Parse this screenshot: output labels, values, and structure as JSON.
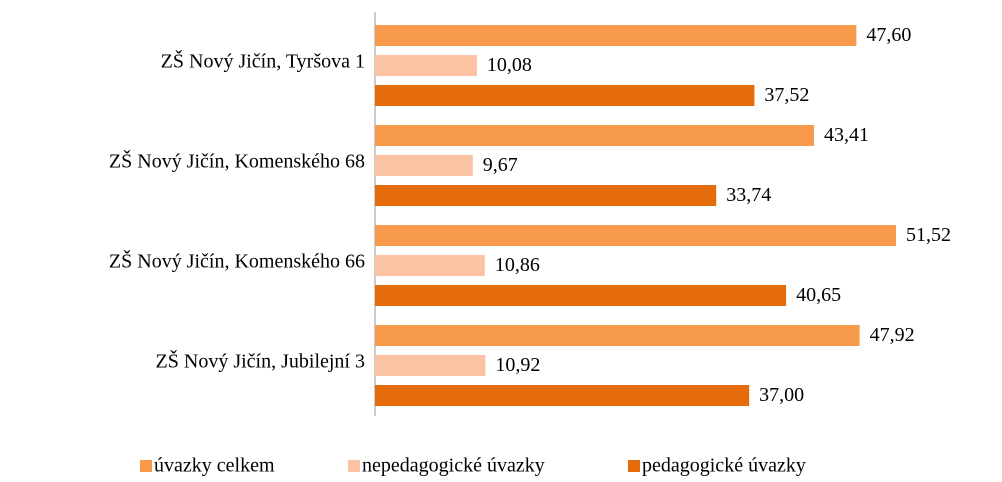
{
  "chart_data": {
    "type": "bar",
    "orientation": "horizontal",
    "categories": [
      "ZŠ Nový Jičín, Tyršova 1",
      "ZŠ Nový Jičín, Komenského 68",
      "ZŠ Nový Jičín, Komenského 66",
      "ZŠ Nový Jičín, Jubilejní 3"
    ],
    "series": [
      {
        "name": "úvazky celkem",
        "color": "#f79a4c",
        "values": [
          47.6,
          43.41,
          51.52,
          47.92
        ],
        "value_labels": [
          "47,60",
          "43,41",
          "51,52",
          "47,92"
        ]
      },
      {
        "name": "nepedagogické úvazky",
        "color": "#fbc2a3",
        "values": [
          10.08,
          9.67,
          10.86,
          10.92
        ],
        "value_labels": [
          "10,08",
          "9,67",
          "10,86",
          "10,92"
        ]
      },
      {
        "name": "pedagogické úvazky",
        "color": "#e46c0a",
        "values": [
          37.52,
          33.74,
          40.65,
          37.0
        ],
        "value_labels": [
          "37,52",
          "33,74",
          "40,65",
          "37,00"
        ]
      }
    ],
    "legend": "bottom"
  }
}
